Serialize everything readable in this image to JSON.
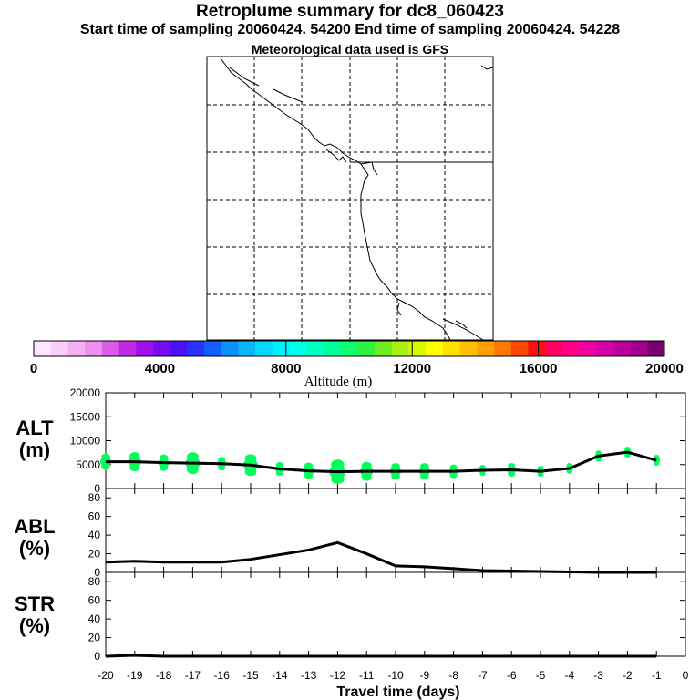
{
  "header": {
    "title": "Retroplume summary for dc8_060423",
    "sampling": "Start time of sampling 20060424. 54200     End time of sampling 20060424. 54228",
    "met": "Meteorological data used is GFS"
  },
  "colorbar": {
    "label": "Altitude (m)",
    "ticks": [
      "0",
      "4000",
      "8000",
      "12000",
      "16000",
      "20000"
    ],
    "colors": [
      "#ffe6ff",
      "#fbcdfb",
      "#f5b0f5",
      "#ed8ef0",
      "#dc5ce8",
      "#c22ae6",
      "#a010ea",
      "#7a0af0",
      "#4c10f8",
      "#2a30ff",
      "#1060ff",
      "#0a90ff",
      "#08b8ff",
      "#05d8ff",
      "#00f0ff",
      "#00ffe8",
      "#00ffc0",
      "#00ff98",
      "#10ff70",
      "#30f040",
      "#70ec20",
      "#a8f010",
      "#d8f800",
      "#ffff00",
      "#ffe000",
      "#ffc000",
      "#ffa000",
      "#ff7800",
      "#ff4800",
      "#ff1010",
      "#ff0060",
      "#ff0088",
      "#f000a0",
      "#d800a8",
      "#bc00a0",
      "#a0008c",
      "#780070"
    ]
  },
  "y_labels": {
    "alt": [
      "ALT",
      "(m)"
    ],
    "abl": [
      "ABL",
      "(%)"
    ],
    "str": [
      "STR",
      "(%)"
    ]
  },
  "chart_data": [
    {
      "type": "line",
      "name": "ALT",
      "ylabel": "ALT (m)",
      "ylim": [
        0,
        20000
      ],
      "yticks": [
        "0",
        "5000",
        "10000",
        "15000",
        "20000"
      ],
      "x": [
        -20,
        -19,
        -18,
        -17,
        -16,
        -15,
        -14,
        -13,
        -12,
        -11,
        -10,
        -9,
        -8,
        -7,
        -6,
        -5,
        -4,
        -3,
        -2,
        -1
      ],
      "values": [
        5600,
        5600,
        5400,
        5300,
        5200,
        4900,
        4100,
        3700,
        3500,
        3600,
        3600,
        3600,
        3600,
        3800,
        3900,
        3600,
        4200,
        6800,
        7600,
        5900
      ],
      "scatter_color": "#00ff5a"
    },
    {
      "type": "line",
      "name": "ABL",
      "ylabel": "ABL (%)",
      "ylim": [
        0,
        90
      ],
      "yticks": [
        "0",
        "20",
        "40",
        "60",
        "80"
      ],
      "x": [
        -20,
        -19,
        -18,
        -17,
        -16,
        -15,
        -14,
        -13,
        -12,
        -11,
        -10,
        -9,
        -8,
        -7,
        -6,
        -5,
        -4,
        -3,
        -2,
        -1
      ],
      "values": [
        11,
        12,
        11,
        11,
        11,
        14,
        19,
        24,
        32,
        20,
        7,
        6,
        4,
        2,
        1.5,
        1,
        0.5,
        0,
        0,
        0
      ]
    },
    {
      "type": "line",
      "name": "STR",
      "ylabel": "STR (%)",
      "ylim": [
        0,
        90
      ],
      "yticks": [
        "0",
        "20",
        "40",
        "60",
        "80"
      ],
      "x": [
        -20,
        -19,
        -18,
        -17,
        -16,
        -15,
        -14,
        -13,
        -12,
        -11,
        -10,
        -9,
        -8,
        -7,
        -6,
        -5,
        -4,
        -3,
        -2,
        -1
      ],
      "values": [
        0,
        1,
        0,
        0,
        0,
        0,
        0,
        0,
        0,
        0,
        0,
        0,
        0,
        0,
        0,
        0,
        0,
        0,
        0,
        0
      ]
    }
  ],
  "x_axis": {
    "label": "Travel time (days)",
    "ticks": [
      "-20",
      "-19",
      "-18",
      "-17",
      "-16",
      "-15",
      "-14",
      "-13",
      "-12",
      "-11",
      "-10",
      "-9",
      "-8",
      "-7",
      "-6",
      "-5",
      "-4",
      "-3",
      "-2",
      "-1",
      "0"
    ]
  }
}
